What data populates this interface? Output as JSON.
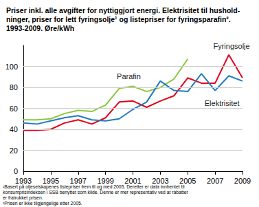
{
  "chart_data": {
    "type": "line",
    "title": [
      "Priser inkl. alle avgifter for nyttiggjort energi. Elektrisitet til hushold-",
      "ninger, priser for lett fyringsolje¹ og listepriser for fyringsparafin².",
      "1993-2009. Øre/kWh"
    ],
    "notes": [
      "¹Basert på oljeselskapenes listepriser frem til og med 2005. Deretter er data innhentet til",
      "konsumprisindeksen i SSB benyttet som kilde. Denne er mer representativ ved at rabatter",
      "er fratrukket prisen.",
      "²Prisen er ikke tilgjengelige etter 2005."
    ],
    "x": [
      1993,
      1994,
      1995,
      1996,
      1997,
      1998,
      1999,
      2000,
      2001,
      2002,
      2003,
      2004,
      2005,
      2006,
      2007,
      2008,
      2009
    ],
    "series": [
      {
        "name": "Parafin",
        "color": "#8cc63e",
        "values": [
          49,
          49,
          50,
          55,
          58,
          57,
          63,
          79,
          81,
          76,
          80,
          88,
          107,
          null,
          null,
          null,
          null
        ]
      },
      {
        "name": "Fyringsolje",
        "color": "#e2001a",
        "values": [
          39,
          39,
          40,
          46,
          49,
          45,
          51,
          66,
          67,
          61,
          67,
          72,
          89,
          84,
          84,
          111,
          89
        ]
      },
      {
        "name": "Elektrisitet",
        "color": "#1f7bbf",
        "values": [
          46,
          45,
          48,
          51,
          53,
          49,
          48,
          50,
          59,
          66,
          86,
          77,
          76,
          93,
          77,
          91,
          86
        ]
      }
    ],
    "xlim": [
      1993,
      2009
    ],
    "xticks": [
      1993,
      1995,
      1997,
      1999,
      2001,
      2003,
      2005,
      2007,
      2009
    ],
    "ylim": [
      0,
      120
    ],
    "yticks": [
      0,
      20,
      40,
      60,
      80,
      100
    ],
    "grid": true
  }
}
